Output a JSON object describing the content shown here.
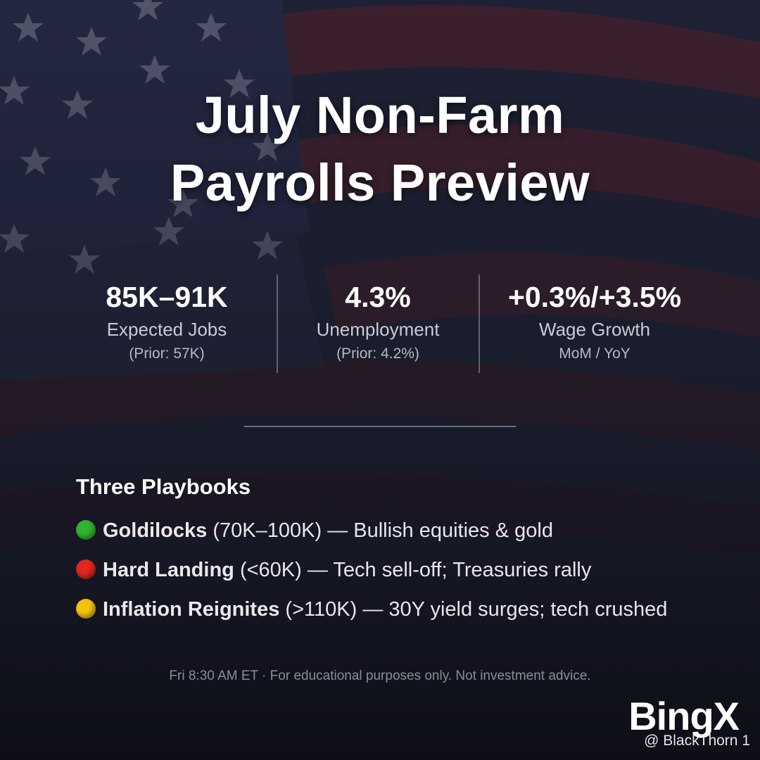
{
  "header": {
    "title_lines": [
      "July Non-Farm",
      "Payrolls Preview"
    ]
  },
  "stats": [
    {
      "value": "85K–91K",
      "label": "Expected Jobs",
      "note": "(Prior: 57K)"
    },
    {
      "value": "4.3%",
      "label": "Unemployment",
      "note": "(Prior: 4.2%)"
    },
    {
      "value": "+0.3%/+3.5%",
      "label": "Wage Growth",
      "note": "MoM / YoY"
    }
  ],
  "playbooks": {
    "heading": "Three Playbooks",
    "items": [
      {
        "color": "#2fb52f",
        "name": "Goldilocks",
        "range": "(70K–100K)",
        "text": "— Bullish equities & gold"
      },
      {
        "color": "#e0261f",
        "name": "Hard Landing",
        "range": "(<60K)",
        "text": "— Tech sell-off; Treasuries rally"
      },
      {
        "color": "#f4c20d",
        "name": "Inflation Reignites",
        "range": "(>110K)",
        "text": "— 30Y yield surges; tech crushed"
      }
    ]
  },
  "footer": "Fri 8:30 AM ET · For educational purposes only. Not investment advice.",
  "brand": {
    "logo": "BingX",
    "handle": "@ BlackThorn 1"
  }
}
